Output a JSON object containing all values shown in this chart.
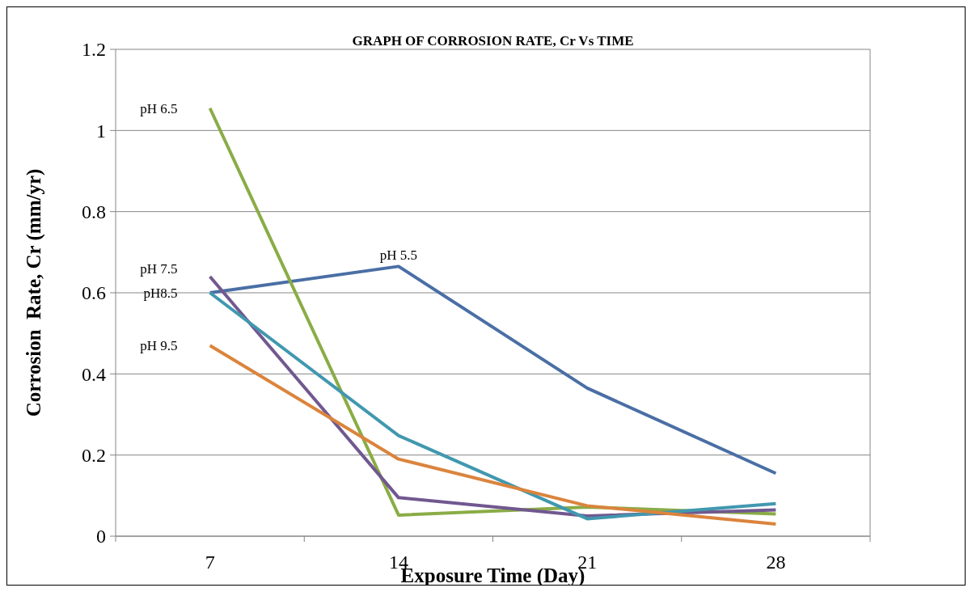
{
  "chart_data": {
    "type": "line",
    "title": "GRAPH OF CORROSION RATE, Cr Vs TIME",
    "xlabel": "Exposure Time (Day)",
    "ylabel": "Corrosion  Rate, Cr (mm/yr)",
    "categories": [
      "7",
      "14",
      "21",
      "28"
    ],
    "series": [
      {
        "name": "pH 5.5",
        "color": "#4a6fa5",
        "values": [
          0.6,
          0.665,
          0.365,
          0.155
        ]
      },
      {
        "name": "pH 6.5",
        "color": "#8aac46",
        "values": [
          1.055,
          0.052,
          0.072,
          0.055
        ]
      },
      {
        "name": "pH 7.5",
        "color": "#71588f",
        "values": [
          0.64,
          0.095,
          0.05,
          0.065
        ]
      },
      {
        "name": "pH8.5",
        "color": "#4198af",
        "values": [
          0.6,
          0.248,
          0.043,
          0.08
        ]
      },
      {
        "name": "pH 9.5",
        "color": "#db843d",
        "values": [
          0.47,
          0.19,
          0.075,
          0.03
        ]
      }
    ],
    "ylim": [
      0,
      1.2
    ],
    "yticks": [
      0,
      {
        "value": 0.2,
        "label": "0.2"
      },
      {
        "value": 0.4,
        "label": "0.4"
      },
      {
        "value": 0.6,
        "label": "0.6"
      },
      {
        "value": 0.8,
        "label": "0.8"
      },
      1,
      {
        "value": 1.2,
        "label": "1.2"
      }
    ],
    "grid": "y",
    "marker": "none",
    "line_style": "solid"
  }
}
